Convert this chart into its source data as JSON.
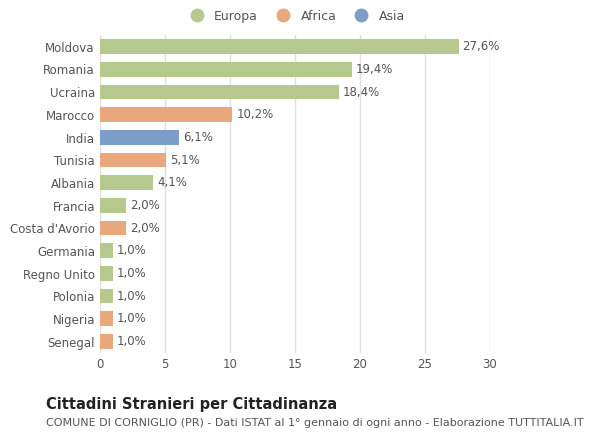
{
  "categories": [
    "Senegal",
    "Nigeria",
    "Polonia",
    "Regno Unito",
    "Germania",
    "Costa d'Avorio",
    "Francia",
    "Albania",
    "Tunisia",
    "India",
    "Marocco",
    "Ucraina",
    "Romania",
    "Moldova"
  ],
  "values": [
    1.0,
    1.0,
    1.0,
    1.0,
    1.0,
    2.0,
    2.0,
    4.1,
    5.1,
    6.1,
    10.2,
    18.4,
    19.4,
    27.6
  ],
  "labels": [
    "1,0%",
    "1,0%",
    "1,0%",
    "1,0%",
    "1,0%",
    "2,0%",
    "2,0%",
    "4,1%",
    "5,1%",
    "6,1%",
    "10,2%",
    "18,4%",
    "19,4%",
    "27,6%"
  ],
  "colors": [
    "#e8a87c",
    "#e8a87c",
    "#b5c98e",
    "#b5c98e",
    "#b5c98e",
    "#e8a87c",
    "#b5c98e",
    "#b5c98e",
    "#e8a87c",
    "#7b9fc7",
    "#e8a87c",
    "#b5c98e",
    "#b5c98e",
    "#b5c98e"
  ],
  "legend": [
    {
      "label": "Europa",
      "color": "#b5c98e"
    },
    {
      "label": "Africa",
      "color": "#e8a87c"
    },
    {
      "label": "Asia",
      "color": "#7b9fc7"
    }
  ],
  "title": "Cittadini Stranieri per Cittadinanza",
  "subtitle": "COMUNE DI CORNIGLIO (PR) - Dati ISTAT al 1° gennaio di ogni anno - Elaborazione TUTTITALIA.IT",
  "xlim": [
    0,
    30
  ],
  "xticks": [
    0,
    5,
    10,
    15,
    20,
    25,
    30
  ],
  "background_color": "#ffffff",
  "grid_color": "#e0e0e0",
  "bar_height": 0.65,
  "label_fontsize": 8.5,
  "tick_fontsize": 8.5,
  "title_fontsize": 10.5,
  "subtitle_fontsize": 8
}
